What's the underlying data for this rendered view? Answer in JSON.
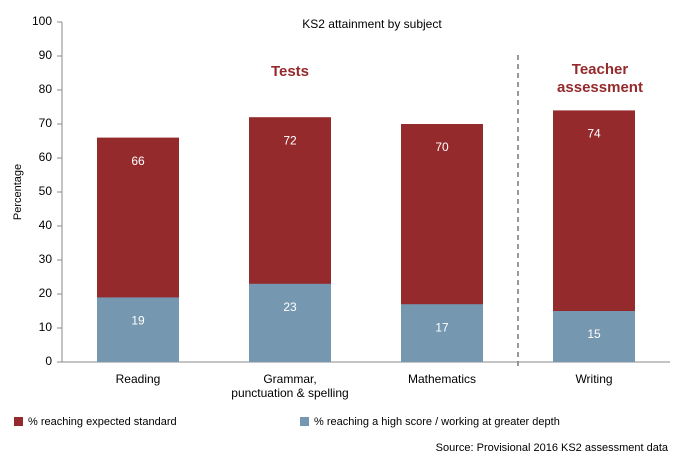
{
  "chart_data": {
    "type": "bar",
    "title": "KS2 attainment by subject",
    "y_label": "Percentage",
    "categories": [
      "Reading",
      "Grammar,\npunctuation & spelling",
      "Mathematics",
      "Writing"
    ],
    "series": [
      {
        "name": "% reaching expected standard",
        "color": "#952a2d",
        "values": [
          66,
          72,
          70,
          74
        ]
      },
      {
        "name": "% reaching a high score / working at greater depth",
        "color": "#7598b0",
        "values": [
          19,
          23,
          17,
          15
        ]
      }
    ],
    "ylim": [
      0,
      100
    ],
    "yticks": [
      0,
      10,
      20,
      30,
      40,
      50,
      60,
      70,
      80,
      90,
      100
    ],
    "grid": false,
    "annotations": [
      "Tests",
      "Teacher assessment"
    ],
    "source": "Source: Provisional 2016 KS2 assessment data"
  }
}
